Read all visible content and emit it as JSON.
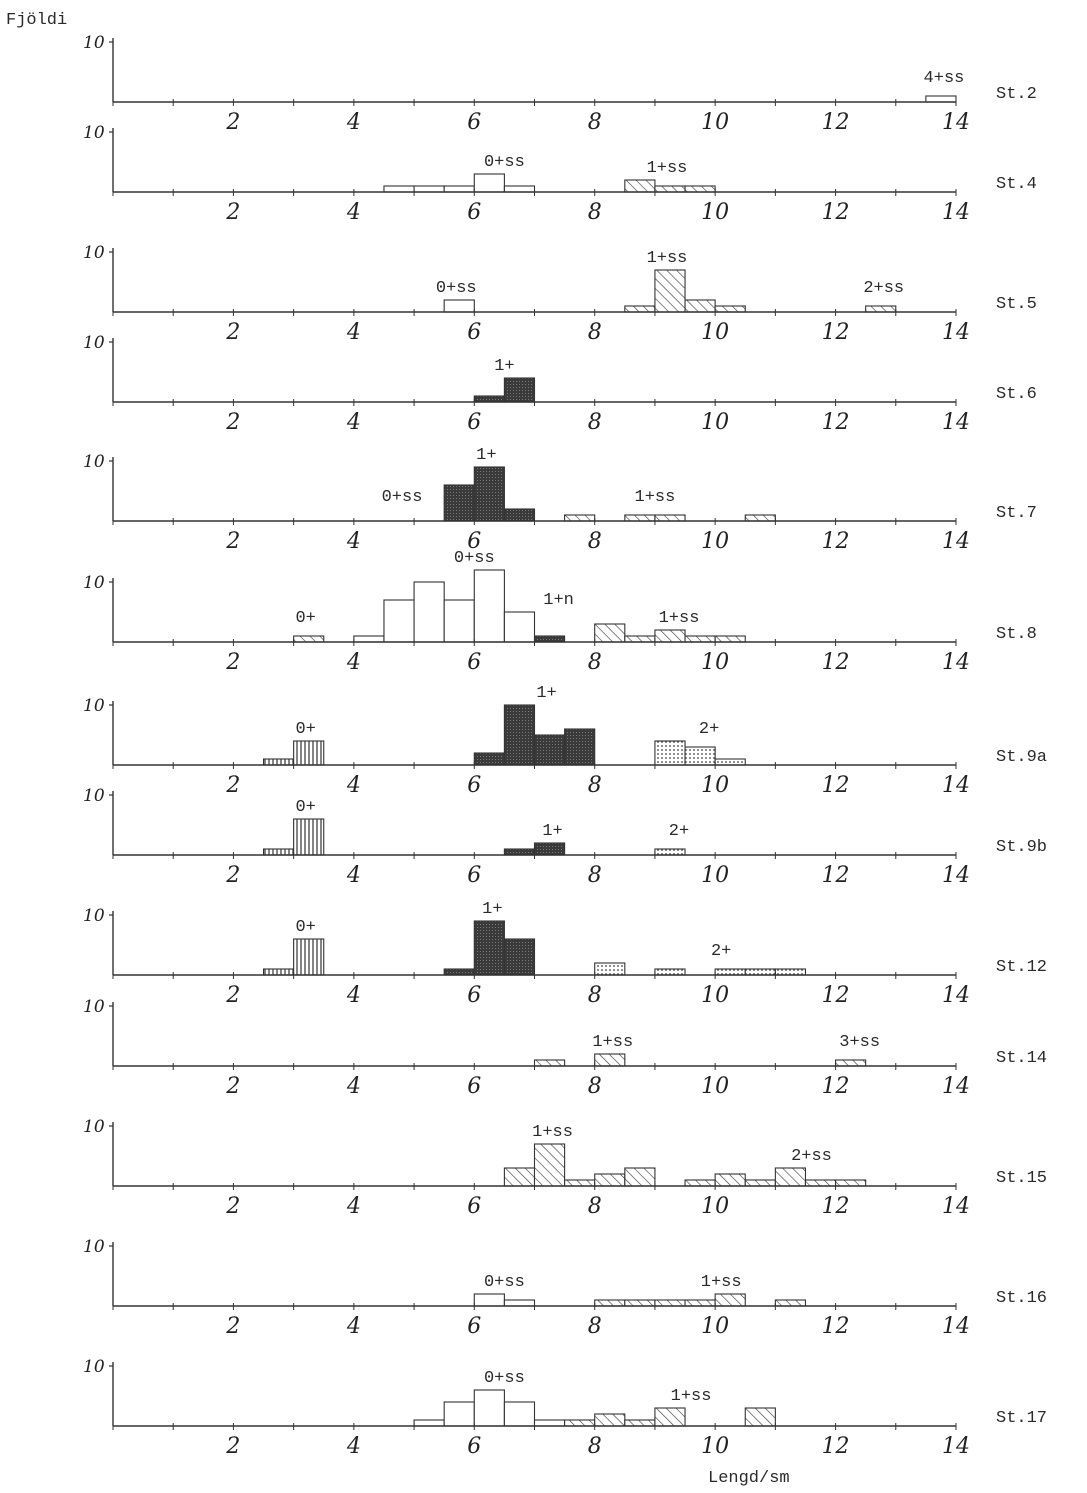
{
  "chart_data": {
    "type": "bar",
    "ylabel": "Fjöldi",
    "xlabel": "Lengd/sm",
    "x_range": [
      0,
      14
    ],
    "bin_width": 0.5,
    "y_range": [
      0,
      10
    ],
    "y_tick": "10",
    "panels": [
      {
        "station": "St.2",
        "labels": [
          {
            "text": "4+ss",
            "x": 13.8
          }
        ],
        "bars": [
          {
            "x": 13.5,
            "h": 1,
            "fill": "open"
          }
        ],
        "x_ticks": [
          "2",
          "4",
          "6",
          "8",
          "10",
          "12",
          "14"
        ]
      },
      {
        "station": "St.4",
        "labels": [
          {
            "text": "0+ss",
            "x": 6.5
          },
          {
            "text": "1+ss",
            "x": 9.2
          }
        ],
        "bars": [
          {
            "x": 4.5,
            "h": 1,
            "fill": "open"
          },
          {
            "x": 5.0,
            "h": 1,
            "fill": "open"
          },
          {
            "x": 5.5,
            "h": 1,
            "fill": "open"
          },
          {
            "x": 6.0,
            "h": 3,
            "fill": "open"
          },
          {
            "x": 6.5,
            "h": 1,
            "fill": "open"
          },
          {
            "x": 8.5,
            "h": 2,
            "fill": "hatch"
          },
          {
            "x": 9.0,
            "h": 1,
            "fill": "hatch"
          },
          {
            "x": 9.5,
            "h": 1,
            "fill": "hatch"
          }
        ],
        "x_ticks": [
          "2",
          "4",
          "6",
          "8",
          "10",
          "12",
          "14"
        ]
      },
      {
        "station": "St.5",
        "labels": [
          {
            "text": "0+ss",
            "x": 5.7
          },
          {
            "text": "1+ss",
            "x": 9.2
          },
          {
            "text": "2+ss",
            "x": 12.8
          }
        ],
        "bars": [
          {
            "x": 5.5,
            "h": 2,
            "fill": "open"
          },
          {
            "x": 8.5,
            "h": 1,
            "fill": "hatch"
          },
          {
            "x": 9.0,
            "h": 7,
            "fill": "hatch"
          },
          {
            "x": 9.5,
            "h": 2,
            "fill": "hatch"
          },
          {
            "x": 10.0,
            "h": 1,
            "fill": "hatch"
          },
          {
            "x": 12.5,
            "h": 1,
            "fill": "hatch"
          }
        ],
        "x_ticks": [
          "2",
          "4",
          "6",
          "8",
          "10",
          "12",
          "14"
        ]
      },
      {
        "station": "St.6",
        "labels": [
          {
            "text": "1+",
            "x": 6.5
          }
        ],
        "bars": [
          {
            "x": 6.0,
            "h": 1,
            "fill": "dark"
          },
          {
            "x": 6.5,
            "h": 4,
            "fill": "dark"
          }
        ],
        "x_ticks": [
          "2",
          "4",
          "6",
          "8",
          "10",
          "12",
          "14"
        ]
      },
      {
        "station": "St.7",
        "labels": [
          {
            "text": "1+",
            "x": 6.2
          },
          {
            "text": "0+ss",
            "x": 4.8
          },
          {
            "text": "1+ss",
            "x": 9.0
          }
        ],
        "bars": [
          {
            "x": 5.5,
            "h": 6,
            "fill": "dark"
          },
          {
            "x": 6.0,
            "h": 9,
            "fill": "dark"
          },
          {
            "x": 6.5,
            "h": 2,
            "fill": "dark"
          },
          {
            "x": 7.5,
            "h": 1,
            "fill": "hatch"
          },
          {
            "x": 8.5,
            "h": 1,
            "fill": "hatch"
          },
          {
            "x": 9.0,
            "h": 1,
            "fill": "hatch"
          },
          {
            "x": 10.5,
            "h": 1,
            "fill": "hatch"
          }
        ],
        "x_ticks": [
          "2",
          "4",
          "6",
          "8",
          "10",
          "12",
          "14"
        ]
      },
      {
        "station": "St.8",
        "labels": [
          {
            "text": "0+ss",
            "x": 6.0
          },
          {
            "text": "0+",
            "x": 3.2
          },
          {
            "text": "1+n",
            "x": 7.4
          },
          {
            "text": "1+ss",
            "x": 9.4
          }
        ],
        "bars": [
          {
            "x": 3.0,
            "h": 1,
            "fill": "hatch"
          },
          {
            "x": 4.0,
            "h": 1,
            "fill": "open"
          },
          {
            "x": 4.5,
            "h": 7,
            "fill": "open"
          },
          {
            "x": 5.0,
            "h": 10,
            "fill": "open"
          },
          {
            "x": 5.5,
            "h": 7,
            "fill": "open"
          },
          {
            "x": 6.0,
            "h": 12,
            "fill": "open"
          },
          {
            "x": 6.5,
            "h": 5,
            "fill": "open"
          },
          {
            "x": 7.0,
            "h": 1,
            "fill": "dark"
          },
          {
            "x": 8.0,
            "h": 3,
            "fill": "hatch"
          },
          {
            "x": 8.5,
            "h": 1,
            "fill": "hatch"
          },
          {
            "x": 9.0,
            "h": 2,
            "fill": "hatch"
          },
          {
            "x": 9.5,
            "h": 1,
            "fill": "hatch"
          },
          {
            "x": 10.0,
            "h": 1,
            "fill": "hatch"
          }
        ],
        "x_ticks": [
          "2",
          "4",
          "6",
          "8",
          "10",
          "12",
          "14"
        ]
      },
      {
        "station": "St.9a",
        "labels": [
          {
            "text": "1+",
            "x": 7.2
          },
          {
            "text": "0+",
            "x": 3.2
          },
          {
            "text": "2+",
            "x": 9.9
          }
        ],
        "bars": [
          {
            "x": 2.5,
            "h": 1,
            "fill": "vert"
          },
          {
            "x": 3.0,
            "h": 4,
            "fill": "vert"
          },
          {
            "x": 6.0,
            "h": 2,
            "fill": "dark"
          },
          {
            "x": 6.5,
            "h": 10,
            "fill": "dark"
          },
          {
            "x": 7.0,
            "h": 5,
            "fill": "dark"
          },
          {
            "x": 7.5,
            "h": 6,
            "fill": "dark"
          },
          {
            "x": 9.0,
            "h": 4,
            "fill": "dots"
          },
          {
            "x": 9.5,
            "h": 3,
            "fill": "dots"
          },
          {
            "x": 10.0,
            "h": 1,
            "fill": "dots"
          }
        ],
        "x_ticks": [
          "2",
          "4",
          "6",
          "8",
          "10",
          "12",
          "14"
        ]
      },
      {
        "station": "St.9b",
        "labels": [
          {
            "text": "0+",
            "x": 3.2
          },
          {
            "text": "1+",
            "x": 7.3
          },
          {
            "text": "2+",
            "x": 9.4
          }
        ],
        "bars": [
          {
            "x": 2.5,
            "h": 1,
            "fill": "vert"
          },
          {
            "x": 3.0,
            "h": 6,
            "fill": "vert"
          },
          {
            "x": 6.5,
            "h": 1,
            "fill": "dark"
          },
          {
            "x": 7.0,
            "h": 2,
            "fill": "dark"
          },
          {
            "x": 9.0,
            "h": 1,
            "fill": "dots"
          }
        ],
        "x_ticks": [
          "2",
          "4",
          "6",
          "8",
          "10",
          "12",
          "14"
        ]
      },
      {
        "station": "St.12",
        "labels": [
          {
            "text": "1+",
            "x": 6.3
          },
          {
            "text": "0+",
            "x": 3.2
          },
          {
            "text": "2+",
            "x": 10.1
          }
        ],
        "bars": [
          {
            "x": 2.5,
            "h": 1,
            "fill": "vert"
          },
          {
            "x": 3.0,
            "h": 6,
            "fill": "vert"
          },
          {
            "x": 5.5,
            "h": 1,
            "fill": "dark"
          },
          {
            "x": 6.0,
            "h": 9,
            "fill": "dark"
          },
          {
            "x": 6.5,
            "h": 6,
            "fill": "dark"
          },
          {
            "x": 8.0,
            "h": 2,
            "fill": "dots"
          },
          {
            "x": 9.0,
            "h": 1,
            "fill": "dots"
          },
          {
            "x": 10.0,
            "h": 1,
            "fill": "dots"
          },
          {
            "x": 10.5,
            "h": 1,
            "fill": "dots"
          },
          {
            "x": 11.0,
            "h": 1,
            "fill": "dots"
          }
        ],
        "x_ticks": [
          "2",
          "4",
          "6",
          "8",
          "10",
          "12",
          "14"
        ]
      },
      {
        "station": "St.14",
        "labels": [
          {
            "text": "1+ss",
            "x": 8.3
          },
          {
            "text": "3+ss",
            "x": 12.4
          }
        ],
        "bars": [
          {
            "x": 7.0,
            "h": 1,
            "fill": "hatch"
          },
          {
            "x": 8.0,
            "h": 2,
            "fill": "hatch"
          },
          {
            "x": 12.0,
            "h": 1,
            "fill": "hatch"
          }
        ],
        "x_ticks": [
          "2",
          "4",
          "6",
          "8",
          "10",
          "12",
          "14"
        ]
      },
      {
        "station": "St.15",
        "labels": [
          {
            "text": "1+ss",
            "x": 7.3
          },
          {
            "text": "2+ss",
            "x": 11.6
          }
        ],
        "bars": [
          {
            "x": 6.5,
            "h": 3,
            "fill": "hatch"
          },
          {
            "x": 7.0,
            "h": 7,
            "fill": "hatch"
          },
          {
            "x": 7.5,
            "h": 1,
            "fill": "hatch"
          },
          {
            "x": 8.0,
            "h": 2,
            "fill": "hatch"
          },
          {
            "x": 8.5,
            "h": 3,
            "fill": "hatch"
          },
          {
            "x": 9.5,
            "h": 1,
            "fill": "hatch"
          },
          {
            "x": 10.0,
            "h": 2,
            "fill": "hatch"
          },
          {
            "x": 10.5,
            "h": 1,
            "fill": "hatch"
          },
          {
            "x": 11.0,
            "h": 3,
            "fill": "hatch"
          },
          {
            "x": 11.5,
            "h": 1,
            "fill": "hatch"
          },
          {
            "x": 12.0,
            "h": 1,
            "fill": "hatch"
          }
        ],
        "x_ticks": [
          "2",
          "4",
          "6",
          "8",
          "10",
          "12",
          "14"
        ]
      },
      {
        "station": "St.16",
        "labels": [
          {
            "text": "0+ss",
            "x": 6.5
          },
          {
            "text": "1+ss",
            "x": 10.1
          }
        ],
        "bars": [
          {
            "x": 6.0,
            "h": 2,
            "fill": "open"
          },
          {
            "x": 6.5,
            "h": 1,
            "fill": "open"
          },
          {
            "x": 8.0,
            "h": 1,
            "fill": "hatch"
          },
          {
            "x": 8.5,
            "h": 1,
            "fill": "hatch"
          },
          {
            "x": 9.0,
            "h": 1,
            "fill": "hatch"
          },
          {
            "x": 9.5,
            "h": 1,
            "fill": "hatch"
          },
          {
            "x": 10.0,
            "h": 2,
            "fill": "hatch"
          },
          {
            "x": 11.0,
            "h": 1,
            "fill": "hatch"
          }
        ],
        "x_ticks": [
          "2",
          "4",
          "6",
          "8",
          "10",
          "12",
          "14"
        ]
      },
      {
        "station": "St.17",
        "labels": [
          {
            "text": "0+ss",
            "x": 6.5
          },
          {
            "text": "1+ss",
            "x": 9.6
          }
        ],
        "bars": [
          {
            "x": 5.0,
            "h": 1,
            "fill": "open"
          },
          {
            "x": 5.5,
            "h": 4,
            "fill": "open"
          },
          {
            "x": 6.0,
            "h": 6,
            "fill": "open"
          },
          {
            "x": 6.5,
            "h": 4,
            "fill": "open"
          },
          {
            "x": 7.0,
            "h": 1,
            "fill": "open"
          },
          {
            "x": 7.5,
            "h": 1,
            "fill": "hatch"
          },
          {
            "x": 8.0,
            "h": 2,
            "fill": "hatch"
          },
          {
            "x": 8.5,
            "h": 1,
            "fill": "hatch"
          },
          {
            "x": 9.0,
            "h": 3,
            "fill": "hatch"
          },
          {
            "x": 10.5,
            "h": 3,
            "fill": "hatch"
          }
        ],
        "x_ticks": [
          "2",
          "4",
          "6",
          "8",
          "10",
          "12",
          "14"
        ]
      }
    ]
  }
}
